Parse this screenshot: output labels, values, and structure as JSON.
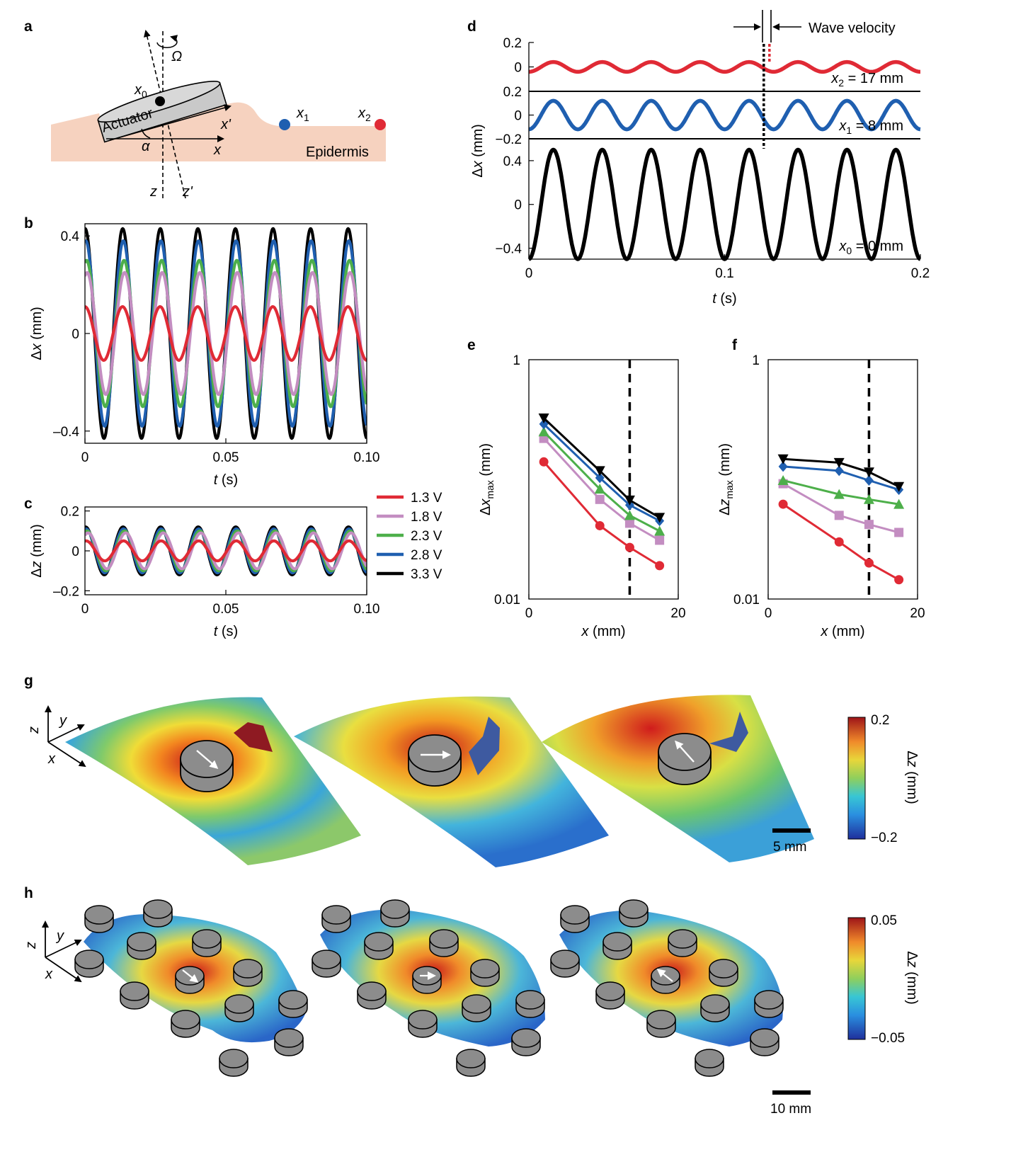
{
  "colors": {
    "1.3 V": "#e02a35",
    "1.8 V": "#c38dc1",
    "2.3 V": "#4daf4a",
    "2.8 V": "#1f5fb0",
    "3.3 V": "#000000",
    "skin": "#f6d2bf",
    "actuator": "#c9c9c9",
    "disk": "#8c8c8c"
  },
  "panel_letters": [
    "a",
    "b",
    "c",
    "d",
    "e",
    "f",
    "g",
    "h"
  ],
  "schematic": {
    "actuator_label": "Actuator",
    "epidermis_label": "Epidermis",
    "omega": "Ω",
    "alpha": "α",
    "x0": "x",
    "x0_sub": "0",
    "x1": "x",
    "x1_sub": "1",
    "x2": "x",
    "x2_sub": "2",
    "x_axis": "x",
    "x_prime": "x'",
    "z_axis": "z",
    "z_prime": "z'"
  },
  "legend": {
    "entries": [
      "1.3 V",
      "1.8 V",
      "2.3 V",
      "2.8 V",
      "3.3 V"
    ],
    "placement": "right of panel c"
  },
  "chart_data": [
    {
      "id": "b",
      "type": "line",
      "xlabel_var": "t",
      "xlabel_unit": " (s)",
      "ylabel_prefix": "Δ",
      "ylabel_var": "x",
      "ylabel_unit": " (mm)",
      "xlim": [
        0,
        0.1
      ],
      "ylim": [
        -0.45,
        0.45
      ],
      "xticks": [
        0,
        0.05,
        0.1
      ],
      "xtick_labels": [
        "0",
        "0.05",
        "0.10"
      ],
      "yticks": [
        -0.4,
        0,
        0.4
      ],
      "ytick_labels": [
        "–0.4",
        "0",
        "0.4"
      ],
      "frequency_hz": 75,
      "series": [
        {
          "name": "1.3 V",
          "amplitude": 0.11,
          "phase_deg": 90
        },
        {
          "name": "1.8 V",
          "amplitude": 0.25,
          "phase_deg": 70
        },
        {
          "name": "2.3 V",
          "amplitude": 0.3,
          "phase_deg": 75
        },
        {
          "name": "2.8 V",
          "amplitude": 0.38,
          "phase_deg": 82
        },
        {
          "name": "3.3 V",
          "amplitude": 0.43,
          "phase_deg": 88
        }
      ]
    },
    {
      "id": "c",
      "type": "line",
      "xlabel_var": "t",
      "xlabel_unit": " (s)",
      "ylabel_prefix": "Δ",
      "ylabel_var": "z",
      "ylabel_unit": " (mm)",
      "xlim": [
        0,
        0.1
      ],
      "ylim": [
        -0.22,
        0.22
      ],
      "xticks": [
        0,
        0.05,
        0.1
      ],
      "xtick_labels": [
        "0",
        "0.05",
        "0.10"
      ],
      "yticks": [
        -0.2,
        0,
        0.2
      ],
      "ytick_labels": [
        "–0.2",
        "0",
        "0.2"
      ],
      "frequency_hz": 75,
      "series": [
        {
          "name": "1.3 V",
          "amplitude": 0.05,
          "phase_deg": 80
        },
        {
          "name": "1.8 V",
          "amplitude": 0.09,
          "phase_deg": 60
        },
        {
          "name": "2.3 V",
          "amplitude": 0.1,
          "phase_deg": 70
        },
        {
          "name": "2.8 V",
          "amplitude": 0.11,
          "phase_deg": 80
        },
        {
          "name": "3.3 V",
          "amplitude": 0.12,
          "phase_deg": 85
        }
      ]
    },
    {
      "id": "d",
      "type": "line",
      "xlabel_var": "t",
      "xlabel_unit": " (s)",
      "ylabel_prefix": "Δ",
      "ylabel_var": "x",
      "ylabel_unit": " (mm)",
      "xlim": [
        0,
        0.2
      ],
      "xticks": [
        0,
        0.1,
        0.2
      ],
      "xtick_labels": [
        "0",
        "0.1",
        "0.2"
      ],
      "frequency_hz": 40,
      "annotation": "Wave velocity",
      "marker_t": 0.12,
      "subplots": [
        {
          "label": "x",
          "sub": "2",
          "rest": " = 17 mm",
          "color": "1.3 V",
          "ylim": [
            -0.2,
            0.2
          ],
          "amplitude": 0.04,
          "phase_deg": -90,
          "yticks": [
            0,
            0.2
          ],
          "ytick_labels": [
            "0",
            "0.2"
          ]
        },
        {
          "label": "x",
          "sub": "1",
          "rest": " = 8 mm",
          "color": "2.8 V",
          "ylim": [
            -0.2,
            0.2
          ],
          "amplitude": 0.12,
          "phase_deg": -90,
          "yticks": [
            -0.2,
            0,
            0.2
          ],
          "ytick_labels": [
            "−0.2",
            "0",
            "0.2"
          ]
        },
        {
          "label": "x",
          "sub": "0",
          "rest": " = 0 mm",
          "color": "3.3 V",
          "ylim": [
            -0.5,
            0.6
          ],
          "amplitude": 0.5,
          "phase_deg": -90,
          "yticks": [
            -0.4,
            0,
            0.4
          ],
          "ytick_labels": [
            "−0.4",
            "0",
            "0.4"
          ]
        }
      ]
    },
    {
      "id": "e",
      "type": "line",
      "log_y": true,
      "xlabel_var": "x",
      "xlabel_unit": " (mm)",
      "ylabel_prefix": "Δ",
      "ylabel_var": "x",
      "ylabel_sub": "max",
      "ylabel_unit": " (mm)",
      "xlim": [
        0,
        20
      ],
      "ylim": [
        0.01,
        1
      ],
      "xticks": [
        0,
        20
      ],
      "xtick_labels": [
        "0",
        "20"
      ],
      "yticks": [
        0.01,
        1
      ],
      "ytick_labels": [
        "0.01",
        "1"
      ],
      "vline_x": 13.5,
      "x": [
        2,
        9.5,
        13.5,
        17.5
      ],
      "series": [
        {
          "name": "1.3 V",
          "marker": "circle",
          "values": [
            0.14,
            0.041,
            0.027,
            0.019
          ]
        },
        {
          "name": "1.8 V",
          "marker": "square",
          "values": [
            0.22,
            0.068,
            0.043,
            0.031
          ]
        },
        {
          "name": "2.3 V",
          "marker": "triangle-up",
          "values": [
            0.25,
            0.083,
            0.05,
            0.037
          ]
        },
        {
          "name": "2.8 V",
          "marker": "diamond",
          "values": [
            0.29,
            0.103,
            0.061,
            0.045
          ]
        },
        {
          "name": "3.3 V",
          "marker": "triangle-down",
          "values": [
            0.325,
            0.118,
            0.067,
            0.048
          ]
        }
      ]
    },
    {
      "id": "f",
      "type": "line",
      "log_y": true,
      "xlabel_var": "x",
      "xlabel_unit": " (mm)",
      "ylabel_prefix": "Δ",
      "ylabel_var": "z",
      "ylabel_sub": "max",
      "ylabel_unit": " (mm)",
      "xlim": [
        0,
        20
      ],
      "ylim": [
        0.01,
        1
      ],
      "xticks": [
        0,
        20
      ],
      "xtick_labels": [
        "0",
        "20"
      ],
      "yticks": [
        0.01,
        1
      ],
      "ytick_labels": [
        "0.01",
        "1"
      ],
      "vline_x": 13.5,
      "x": [
        2,
        9.5,
        13.5,
        17.5
      ],
      "series": [
        {
          "name": "1.3 V",
          "marker": "circle",
          "values": [
            0.062,
            0.03,
            0.02,
            0.0145
          ]
        },
        {
          "name": "1.8 V",
          "marker": "square",
          "values": [
            0.092,
            0.05,
            0.042,
            0.036
          ]
        },
        {
          "name": "2.3 V",
          "marker": "triangle-up",
          "values": [
            0.098,
            0.075,
            0.068,
            0.062
          ]
        },
        {
          "name": "2.8 V",
          "marker": "diamond",
          "values": [
            0.128,
            0.118,
            0.098,
            0.082
          ]
        },
        {
          "name": "3.3 V",
          "marker": "triangle-down",
          "values": [
            0.148,
            0.138,
            0.115,
            0.087
          ]
        }
      ]
    }
  ],
  "colorbars": [
    {
      "id": "g",
      "max_label": "0.2",
      "min_label": "−0.2",
      "label_prefix": "Δ",
      "label_var": "z",
      "label_unit": " (mm)",
      "scale_bar": "5 mm"
    },
    {
      "id": "h",
      "max_label": "0.05",
      "min_label": "−0.05",
      "label_prefix": "Δ",
      "label_var": "z",
      "label_unit": " (mm)",
      "scale_bar": "10 mm"
    }
  ],
  "axes_triad": {
    "z": "z",
    "y": "y",
    "x": "x"
  }
}
